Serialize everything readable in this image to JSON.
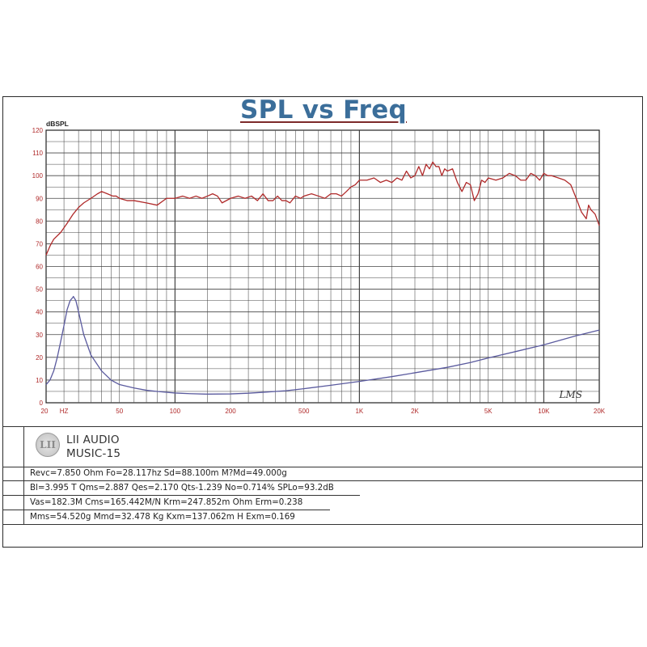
{
  "chart_data": {
    "type": "line",
    "title": "SPL vs Freq",
    "ylabel": "dBSPL",
    "xscale": "log",
    "xlim": [
      20,
      20000
    ],
    "ylim": [
      0,
      120
    ],
    "grid": true,
    "y_ticks": [
      0,
      10,
      20,
      30,
      40,
      50,
      60,
      70,
      80,
      90,
      100,
      110,
      120
    ],
    "x_tick_labels": [
      {
        "f": 20,
        "label": "20"
      },
      {
        "f": 25,
        "label": "HZ"
      },
      {
        "f": 50,
        "label": "50"
      },
      {
        "f": 100,
        "label": "100"
      },
      {
        "f": 200,
        "label": "200"
      },
      {
        "f": 500,
        "label": "500"
      },
      {
        "f": 1000,
        "label": "1K"
      },
      {
        "f": 2000,
        "label": "2K"
      },
      {
        "f": 5000,
        "label": "5K"
      },
      {
        "f": 10000,
        "label": "10K"
      },
      {
        "f": 20000,
        "label": "20K"
      }
    ],
    "annotation": "LMS",
    "series": [
      {
        "color": "#b02a2a",
        "x": [
          20,
          21,
          22,
          24,
          26,
          28,
          30,
          32,
          35,
          38,
          40,
          43,
          46,
          48,
          50,
          55,
          60,
          70,
          80,
          90,
          100,
          110,
          120,
          130,
          140,
          150,
          160,
          170,
          180,
          200,
          220,
          240,
          260,
          280,
          300,
          320,
          340,
          360,
          380,
          400,
          420,
          450,
          480,
          500,
          550,
          600,
          650,
          700,
          750,
          800,
          850,
          900,
          950,
          1000,
          1100,
          1200,
          1300,
          1400,
          1500,
          1600,
          1700,
          1800,
          1900,
          2000,
          2100,
          2200,
          2300,
          2400,
          2500,
          2600,
          2700,
          2800,
          2900,
          3000,
          3200,
          3400,
          3600,
          3800,
          4000,
          4200,
          4400,
          4600,
          4800,
          5000,
          5500,
          6000,
          6500,
          7000,
          7500,
          8000,
          8500,
          9000,
          9500,
          10000,
          10500,
          11000,
          12000,
          13000,
          14000,
          15000,
          16000,
          17000,
          17500,
          18000,
          18500,
          19000,
          20000
        ],
        "values": [
          65,
          69,
          72,
          75,
          79,
          83,
          86,
          88,
          90,
          92,
          93,
          92,
          91,
          91,
          90,
          89,
          89,
          88,
          87,
          90,
          90,
          91,
          90,
          91,
          90,
          91,
          92,
          91,
          88,
          90,
          91,
          90,
          91,
          89,
          92,
          89,
          89,
          91,
          89,
          89,
          88,
          91,
          90,
          91,
          92,
          91,
          90,
          92,
          92,
          91,
          93,
          95,
          96,
          98,
          98,
          99,
          97,
          98,
          97,
          99,
          98,
          102,
          99,
          100,
          104,
          100,
          105,
          103,
          106,
          104,
          104,
          100,
          103,
          102,
          103,
          97,
          93,
          97,
          96,
          89,
          92,
          98,
          97,
          99,
          98,
          99,
          101,
          100,
          98,
          98,
          101,
          100,
          98,
          101,
          100,
          100,
          99,
          98,
          96,
          90,
          84,
          81,
          87,
          85,
          84,
          83,
          78
        ]
      },
      {
        "color": "#5a5a9e",
        "x": [
          20,
          21,
          22,
          23,
          24,
          25,
          26,
          27,
          28,
          28.117,
          29,
          30,
          32,
          35,
          40,
          45,
          50,
          60,
          70,
          80,
          100,
          120,
          150,
          200,
          250,
          300,
          400,
          500,
          700,
          1000,
          1500,
          2000,
          3000,
          4000,
          5000,
          7000,
          10000,
          15000,
          20000
        ],
        "values": [
          8,
          10,
          14,
          20,
          27,
          34,
          41,
          45,
          46.5,
          46.8,
          45,
          40,
          30,
          21,
          14,
          10,
          8,
          6.5,
          5.5,
          5,
          4.3,
          4,
          3.8,
          3.9,
          4.2,
          4.6,
          5.3,
          6.2,
          7.7,
          9.4,
          11.5,
          13.2,
          15.6,
          17.7,
          19.7,
          22.5,
          25.5,
          29.5,
          32
        ]
      }
    ]
  },
  "brand": {
    "logo_text": "LII",
    "company": "LII AUDIO",
    "model": "MUSIC-15"
  },
  "params": [
    "Revc=7.850 Ohm Fo=28.117hz Sd=88.100m M?Md=49.000g",
    "Bl=3.995 T Qms=2.887 Qes=2.170 Qts-1.239 No=0.714% SPLo=93.2dB",
    "Vas=182.3M Cms=165.442M/N Krm=247.852m Ohm Erm=0.238",
    "Mms=54.520g Mmd=32.478 Kg Kxm=137.062m H Exm=0.169"
  ]
}
